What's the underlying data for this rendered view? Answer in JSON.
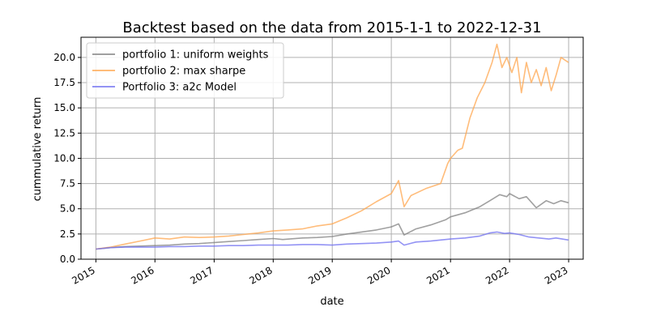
{
  "colors": {
    "series1": "#808080",
    "series2": "#ffa64d",
    "series3": "#6f6ff0",
    "grid": "#b0b0b0"
  },
  "chart_data": {
    "type": "line",
    "title": "Backtest based on the data from 2015-1-1 to 2022-12-31",
    "xlabel": "date",
    "ylabel": "cummulative return",
    "xlim": [
      "2014-10-01",
      "2023-04-01"
    ],
    "ylim": [
      0,
      22.0
    ],
    "xticks": [
      {
        "date": "2015-01-01",
        "label": "2015"
      },
      {
        "date": "2016-01-01",
        "label": "2016"
      },
      {
        "date": "2017-01-01",
        "label": "2017"
      },
      {
        "date": "2018-01-01",
        "label": "2018"
      },
      {
        "date": "2019-01-01",
        "label": "2019"
      },
      {
        "date": "2020-01-01",
        "label": "2020"
      },
      {
        "date": "2021-01-01",
        "label": "2021"
      },
      {
        "date": "2022-01-01",
        "label": "2022"
      },
      {
        "date": "2023-01-01",
        "label": "2023"
      }
    ],
    "yticks": [
      {
        "value": 0.0,
        "label": "0.0"
      },
      {
        "value": 2.5,
        "label": "2.5"
      },
      {
        "value": 5.0,
        "label": "5.0"
      },
      {
        "value": 7.5,
        "label": "7.5"
      },
      {
        "value": 10.0,
        "label": "10.0"
      },
      {
        "value": 12.5,
        "label": "12.5"
      },
      {
        "value": 15.0,
        "label": "15.0"
      },
      {
        "value": 17.5,
        "label": "17.5"
      },
      {
        "value": 20.0,
        "label": "20.0"
      }
    ],
    "grid": true,
    "legend_position": "top-left",
    "series": [
      {
        "name": "portfolio 1: uniform weights",
        "color": "#808080",
        "points": [
          [
            "2015-01-01",
            1.0
          ],
          [
            "2015-04-01",
            1.15
          ],
          [
            "2015-07-01",
            1.25
          ],
          [
            "2015-10-01",
            1.3
          ],
          [
            "2016-01-01",
            1.35
          ],
          [
            "2016-04-01",
            1.4
          ],
          [
            "2016-07-01",
            1.5
          ],
          [
            "2016-10-01",
            1.55
          ],
          [
            "2017-01-01",
            1.65
          ],
          [
            "2017-04-01",
            1.75
          ],
          [
            "2017-07-01",
            1.85
          ],
          [
            "2017-10-01",
            1.95
          ],
          [
            "2018-01-01",
            2.05
          ],
          [
            "2018-03-01",
            1.95
          ],
          [
            "2018-07-01",
            2.1
          ],
          [
            "2018-10-01",
            2.15
          ],
          [
            "2019-01-01",
            2.25
          ],
          [
            "2019-04-01",
            2.5
          ],
          [
            "2019-07-01",
            2.7
          ],
          [
            "2019-10-01",
            2.9
          ],
          [
            "2020-01-01",
            3.2
          ],
          [
            "2020-02-15",
            3.5
          ],
          [
            "2020-03-20",
            2.4
          ],
          [
            "2020-06-01",
            3.0
          ],
          [
            "2020-09-01",
            3.4
          ],
          [
            "2020-12-01",
            3.9
          ],
          [
            "2021-01-01",
            4.2
          ],
          [
            "2021-04-01",
            4.6
          ],
          [
            "2021-07-01",
            5.2
          ],
          [
            "2021-09-01",
            5.8
          ],
          [
            "2021-11-01",
            6.4
          ],
          [
            "2021-12-15",
            6.2
          ],
          [
            "2022-01-01",
            6.5
          ],
          [
            "2022-03-01",
            6.0
          ],
          [
            "2022-04-15",
            6.2
          ],
          [
            "2022-06-15",
            5.1
          ],
          [
            "2022-08-15",
            5.8
          ],
          [
            "2022-10-01",
            5.5
          ],
          [
            "2022-11-15",
            5.8
          ],
          [
            "2022-12-31",
            5.6
          ]
        ]
      },
      {
        "name": "portfolio 2: max sharpe",
        "color": "#ffa64d",
        "points": [
          [
            "2015-01-01",
            1.0
          ],
          [
            "2015-04-01",
            1.2
          ],
          [
            "2015-07-01",
            1.5
          ],
          [
            "2015-10-01",
            1.8
          ],
          [
            "2016-01-01",
            2.1
          ],
          [
            "2016-04-01",
            2.0
          ],
          [
            "2016-07-01",
            2.2
          ],
          [
            "2016-10-01",
            2.15
          ],
          [
            "2017-01-01",
            2.2
          ],
          [
            "2017-04-01",
            2.3
          ],
          [
            "2017-07-01",
            2.45
          ],
          [
            "2017-10-01",
            2.6
          ],
          [
            "2018-01-01",
            2.8
          ],
          [
            "2018-04-01",
            2.9
          ],
          [
            "2018-07-01",
            3.0
          ],
          [
            "2018-10-01",
            3.3
          ],
          [
            "2019-01-01",
            3.5
          ],
          [
            "2019-04-01",
            4.1
          ],
          [
            "2019-07-01",
            4.8
          ],
          [
            "2019-10-01",
            5.7
          ],
          [
            "2020-01-01",
            6.5
          ],
          [
            "2020-02-15",
            7.8
          ],
          [
            "2020-03-20",
            5.2
          ],
          [
            "2020-05-01",
            6.3
          ],
          [
            "2020-08-01",
            7.0
          ],
          [
            "2020-11-01",
            7.5
          ],
          [
            "2020-12-15",
            9.5
          ],
          [
            "2021-01-01",
            10.0
          ],
          [
            "2021-02-15",
            10.8
          ],
          [
            "2021-03-15",
            11.0
          ],
          [
            "2021-05-01",
            14.0
          ],
          [
            "2021-06-15",
            16.0
          ],
          [
            "2021-08-01",
            17.5
          ],
          [
            "2021-09-15",
            19.5
          ],
          [
            "2021-10-15",
            21.3
          ],
          [
            "2021-11-15",
            19.0
          ],
          [
            "2021-12-15",
            20.0
          ],
          [
            "2022-01-15",
            18.5
          ],
          [
            "2022-02-15",
            20.0
          ],
          [
            "2022-03-15",
            16.5
          ],
          [
            "2022-04-15",
            19.5
          ],
          [
            "2022-05-15",
            17.5
          ],
          [
            "2022-06-15",
            18.8
          ],
          [
            "2022-07-15",
            17.2
          ],
          [
            "2022-08-15",
            19.0
          ],
          [
            "2022-09-15",
            16.7
          ],
          [
            "2022-10-15",
            18.2
          ],
          [
            "2022-11-15",
            20.0
          ],
          [
            "2022-12-31",
            19.5
          ]
        ]
      },
      {
        "name": "Portfolio 3: a2c Model",
        "color": "#6f6ff0",
        "points": [
          [
            "2015-01-01",
            1.0
          ],
          [
            "2015-04-01",
            1.15
          ],
          [
            "2015-07-01",
            1.2
          ],
          [
            "2015-10-01",
            1.2
          ],
          [
            "2016-01-01",
            1.2
          ],
          [
            "2016-04-01",
            1.25
          ],
          [
            "2016-07-01",
            1.25
          ],
          [
            "2016-10-01",
            1.3
          ],
          [
            "2017-01-01",
            1.3
          ],
          [
            "2017-04-01",
            1.35
          ],
          [
            "2017-07-01",
            1.35
          ],
          [
            "2017-10-01",
            1.4
          ],
          [
            "2018-01-01",
            1.4
          ],
          [
            "2018-04-01",
            1.4
          ],
          [
            "2018-07-01",
            1.45
          ],
          [
            "2018-10-01",
            1.45
          ],
          [
            "2019-01-01",
            1.4
          ],
          [
            "2019-04-01",
            1.5
          ],
          [
            "2019-07-01",
            1.55
          ],
          [
            "2019-10-01",
            1.6
          ],
          [
            "2020-01-01",
            1.7
          ],
          [
            "2020-02-15",
            1.8
          ],
          [
            "2020-03-20",
            1.4
          ],
          [
            "2020-06-01",
            1.7
          ],
          [
            "2020-09-01",
            1.8
          ],
          [
            "2020-12-01",
            1.95
          ],
          [
            "2021-01-01",
            2.0
          ],
          [
            "2021-04-01",
            2.1
          ],
          [
            "2021-07-01",
            2.3
          ],
          [
            "2021-09-01",
            2.6
          ],
          [
            "2021-10-15",
            2.7
          ],
          [
            "2021-12-01",
            2.55
          ],
          [
            "2022-01-01",
            2.6
          ],
          [
            "2022-03-01",
            2.45
          ],
          [
            "2022-05-01",
            2.2
          ],
          [
            "2022-07-01",
            2.1
          ],
          [
            "2022-09-01",
            2.0
          ],
          [
            "2022-10-15",
            2.1
          ],
          [
            "2022-12-31",
            1.9
          ]
        ]
      }
    ]
  }
}
